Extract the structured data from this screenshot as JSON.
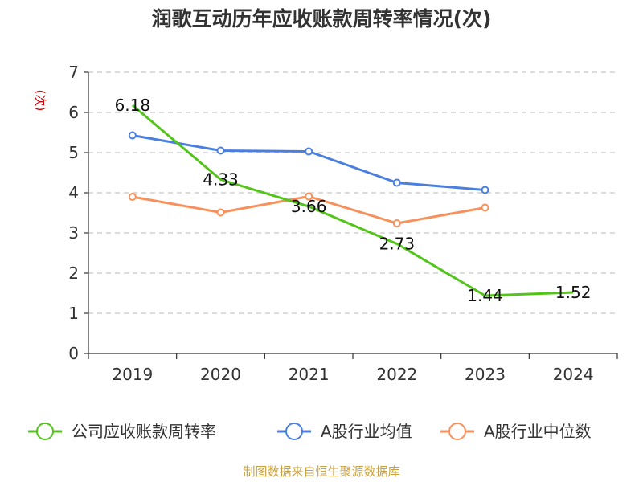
{
  "chart_data": {
    "type": "line",
    "title": "润歌互动历年应收账款周转率情况(次)",
    "ylabel": "(次)",
    "xlabel": "",
    "categories": [
      "2019",
      "2020",
      "2021",
      "2022",
      "2023",
      "2024"
    ],
    "ylim": [
      0,
      7
    ],
    "yticks": [
      "0",
      "1",
      "2",
      "3",
      "4",
      "5",
      "6",
      "7"
    ],
    "grid": "horizontal-dashed",
    "legend_position": "bottom",
    "series": [
      {
        "name": "公司应收账款周转率",
        "color": "#52c41a",
        "values": [
          6.18,
          4.33,
          3.66,
          2.73,
          1.44,
          1.52
        ],
        "labels": [
          "6.18",
          "4.33",
          "3.66",
          "2.73",
          "1.44",
          "1.52"
        ]
      },
      {
        "name": "A股行业均值",
        "color": "#4a7fe0",
        "values": [
          5.43,
          5.05,
          5.03,
          4.25,
          4.07,
          null
        ]
      },
      {
        "name": "A股行业中位数",
        "color": "#f7905a",
        "values": [
          3.9,
          3.51,
          3.91,
          3.24,
          3.63,
          null
        ]
      }
    ],
    "source": "制图数据来自恒生聚源数据库"
  }
}
